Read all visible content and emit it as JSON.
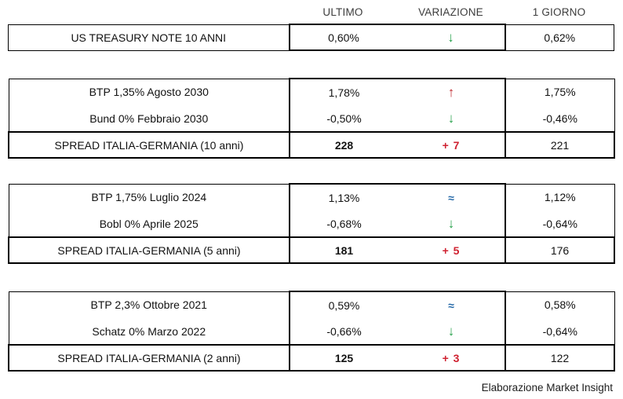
{
  "header": {
    "ultimo": "ULTIMO",
    "variazione": "VARIAZIONE",
    "giorno": "1 GIORNO"
  },
  "colors": {
    "up": "#c1272d",
    "down": "#28a24c",
    "flat": "#2569a8",
    "delta": "#cf2130",
    "border": "#000000"
  },
  "tables": [
    {
      "rows": [
        {
          "label": "US TREASURY NOTE 10 ANNI",
          "ultimo": "0,60%",
          "glyph": "↓",
          "direction": "down",
          "giorno": "0,62%"
        }
      ]
    },
    {
      "rows": [
        {
          "label": "BTP 1,35% Agosto 2030",
          "ultimo": "1,78%",
          "glyph": "↑",
          "direction": "up",
          "giorno": "1,75%"
        },
        {
          "label": "Bund 0% Febbraio 2030",
          "ultimo": "-0,50%",
          "glyph": "↓",
          "direction": "down",
          "giorno": "-0,46%"
        }
      ],
      "spread": {
        "label": "SPREAD ITALIA-GERMANIA (10 anni)",
        "ultimo": "228",
        "variazione": "+ 7",
        "giorno": "221"
      }
    },
    {
      "rows": [
        {
          "label": "BTP 1,75% Luglio 2024",
          "ultimo": "1,13%",
          "glyph": "≈",
          "direction": "flat",
          "giorno": "1,12%"
        },
        {
          "label": "Bobl 0% Aprile 2025",
          "ultimo": "-0,68%",
          "glyph": "↓",
          "direction": "down",
          "giorno": "-0,64%"
        }
      ],
      "spread": {
        "label": "SPREAD ITALIA-GERMANIA (5 anni)",
        "ultimo": "181",
        "variazione": "+ 5",
        "giorno": "176"
      }
    },
    {
      "rows": [
        {
          "label": "BTP 2,3% Ottobre 2021",
          "ultimo": "0,59%",
          "glyph": "≈",
          "direction": "flat",
          "giorno": "0,58%"
        },
        {
          "label": "Schatz 0% Marzo 2022",
          "ultimo": "-0,66%",
          "glyph": "↓",
          "direction": "down",
          "giorno": "-0,64%"
        }
      ],
      "spread": {
        "label": "SPREAD ITALIA-GERMANIA (2 anni)",
        "ultimo": "125",
        "variazione": "+ 3",
        "giorno": "122"
      }
    }
  ],
  "footer": "Elaborazione Market Insight"
}
